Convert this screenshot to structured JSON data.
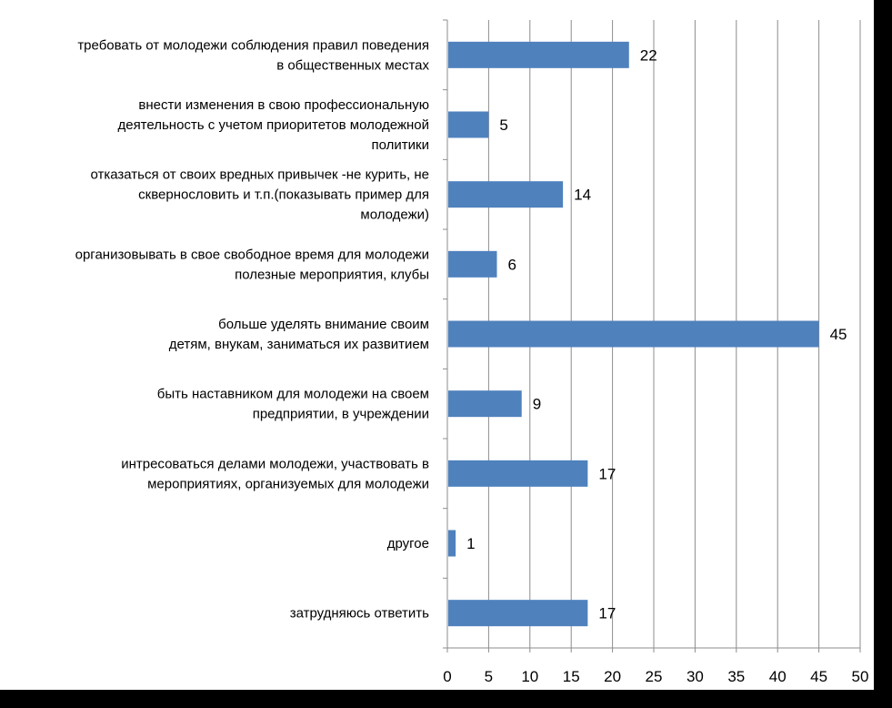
{
  "chart_data": {
    "type": "bar",
    "orientation": "horizontal",
    "categories": [
      [
        "требовать от молодежи соблюдения правил поведения",
        "в общественных местах"
      ],
      [
        "внести изменения в свою профессиональную",
        "деятельность с учетом приоритетов молодежной",
        "политики"
      ],
      [
        "отказаться от своих вредных привычек -не курить, не",
        "сквернословить и т.п.(показывать пример для",
        "молодежи)"
      ],
      [
        "организовывать в свое свободное время для молодежи",
        "полезные мероприятия, клубы"
      ],
      [
        "больше уделять внимание своим",
        "детям, внукам, заниматься их развитием"
      ],
      [
        "быть наставником для молодежи на своем",
        "предприятии, в учреждении"
      ],
      [
        "интресоваться делами молодежи, участвовать в",
        "мероприятиях, организуемых для молодежи"
      ],
      [
        "другое"
      ],
      [
        "затрудняюсь ответить"
      ]
    ],
    "values": [
      22,
      5,
      14,
      6,
      45,
      9,
      17,
      1,
      17
    ],
    "data_labels": [
      "22",
      "5",
      "14",
      "6",
      "45",
      "9",
      "17",
      "1",
      "17"
    ],
    "xlim": [
      0,
      50
    ],
    "x_ticks": [
      "0",
      "5",
      "10",
      "15",
      "20",
      "25",
      "30",
      "35",
      "40",
      "45",
      "50"
    ],
    "grid": "vertical",
    "legend": "none",
    "bar_color": "#4f81bd"
  }
}
